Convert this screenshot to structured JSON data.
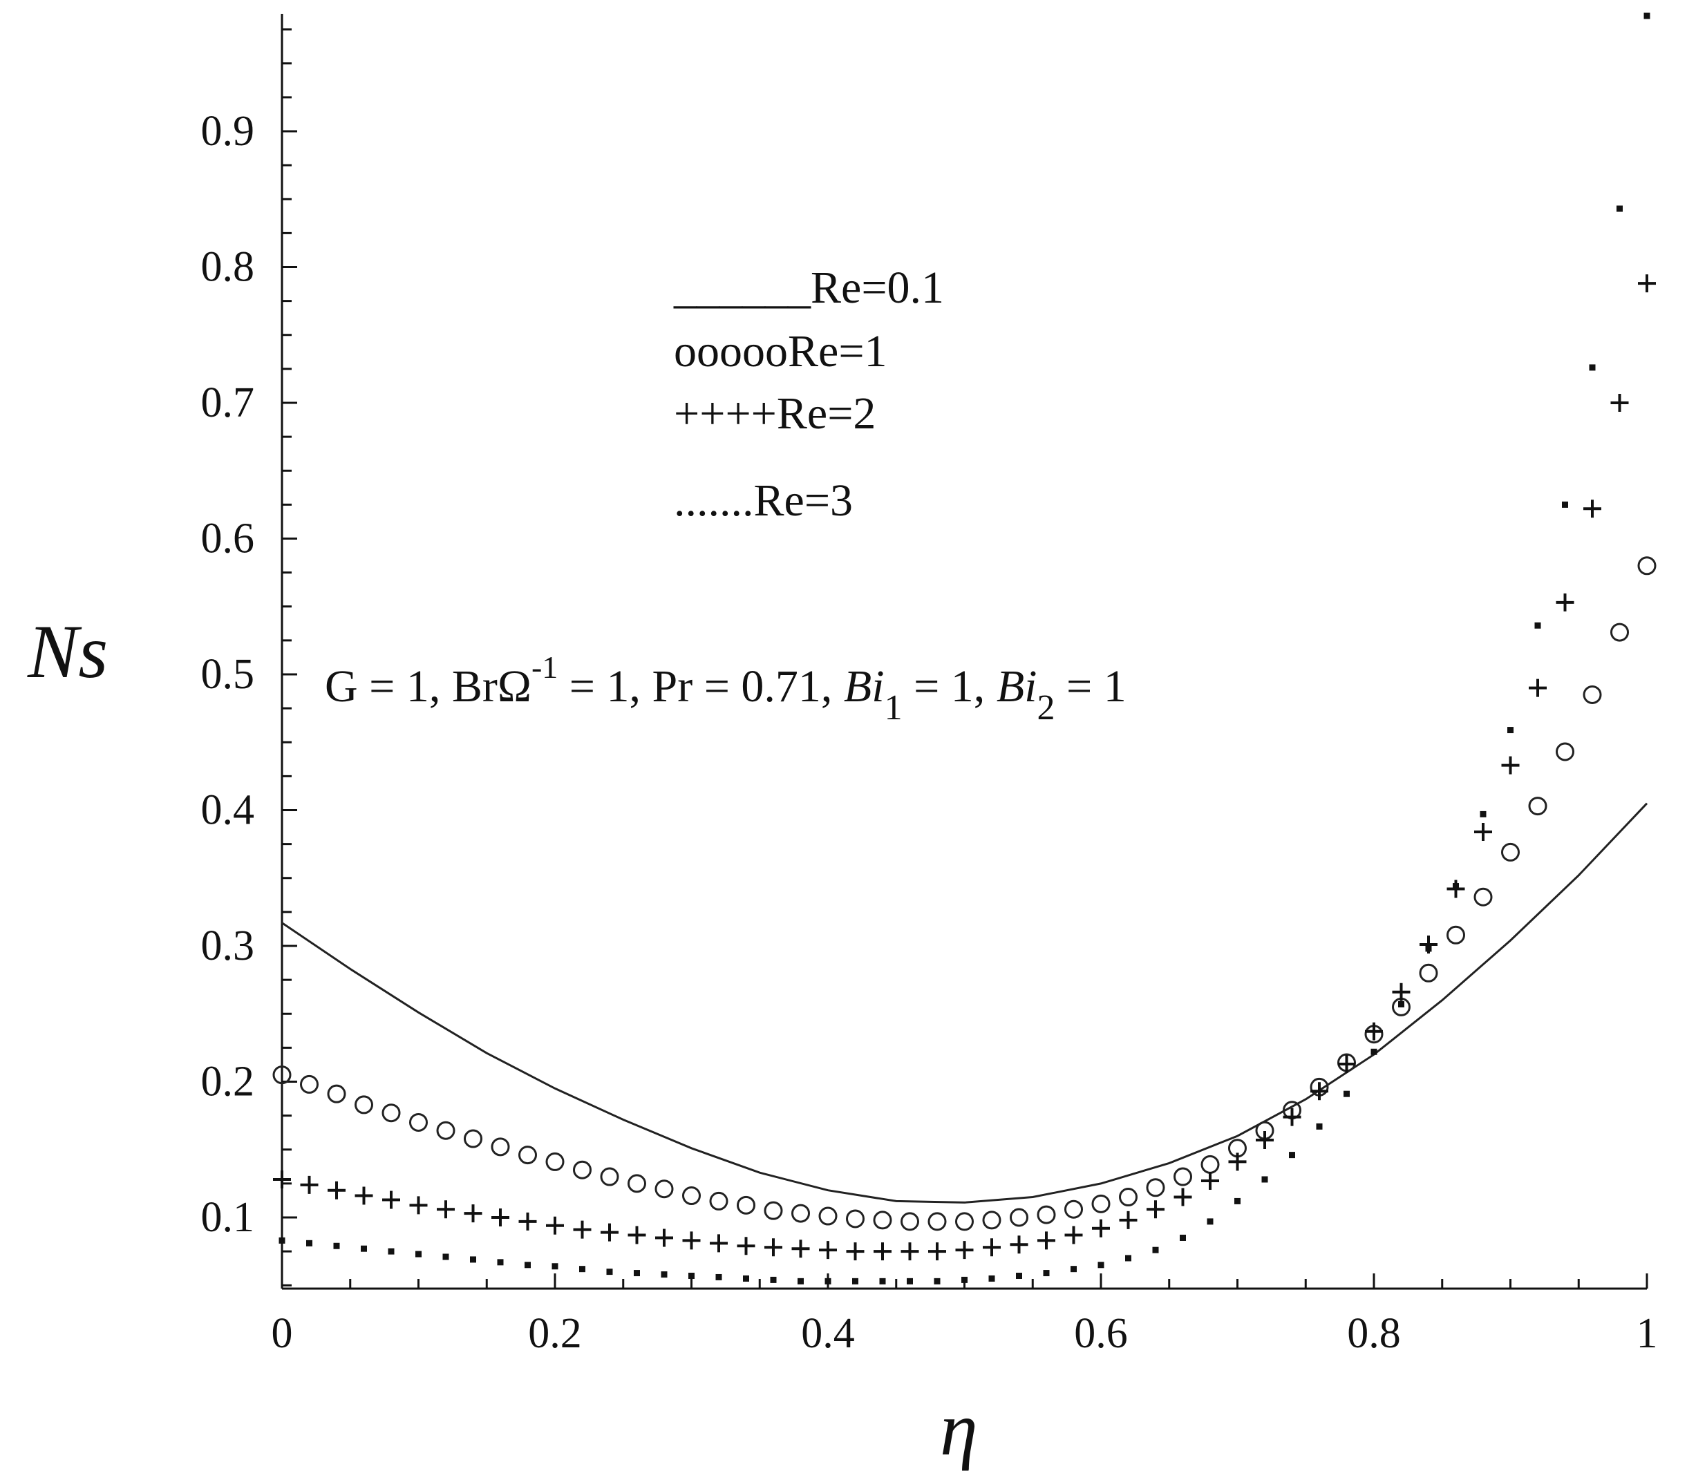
{
  "chart_data": {
    "type": "scatter",
    "xlabel": "η",
    "ylabel": "Ns",
    "xlim": [
      0,
      1
    ],
    "ylim": [
      0.05,
      0.98
    ],
    "xticks": [
      "0",
      "0.2",
      "0.4",
      "0.6",
      "0.8",
      "1"
    ],
    "yticks": [
      "0.1",
      "0.2",
      "0.3",
      "0.4",
      "0.5",
      "0.6",
      "0.7",
      "0.8",
      "0.9"
    ],
    "grid": false,
    "legend_placement": "upper-center",
    "annotation": {
      "g": "G = 1, ",
      "br_main": "BrΩ",
      "br_exp": "-1",
      "pr": " = 1, Pr = 0.71, ",
      "bi1_main": "Bi",
      "bi1_sub": "1",
      "bi1_val": " = 1, ",
      "bi2_main": "Bi",
      "bi2_sub": "2",
      "bi2_val": " = 1"
    },
    "series": [
      {
        "name": "Re=0.1",
        "legend_label": "______Re=0.1",
        "style": "solid-line",
        "x": [
          0.0,
          0.05,
          0.1,
          0.15,
          0.2,
          0.25,
          0.3,
          0.35,
          0.4,
          0.45,
          0.5,
          0.55,
          0.6,
          0.65,
          0.7,
          0.75,
          0.8,
          0.85,
          0.9,
          0.95,
          1.0
        ],
        "y": [
          0.317,
          0.283,
          0.251,
          0.221,
          0.195,
          0.172,
          0.151,
          0.133,
          0.12,
          0.112,
          0.111,
          0.115,
          0.125,
          0.14,
          0.16,
          0.187,
          0.22,
          0.26,
          0.304,
          0.352,
          0.405
        ]
      },
      {
        "name": "Re=1",
        "legend_label": "oooooRe=1",
        "style": "circle",
        "x": [
          0.0,
          0.02,
          0.04,
          0.06,
          0.08,
          0.1,
          0.12,
          0.14,
          0.16,
          0.18,
          0.2,
          0.22,
          0.24,
          0.26,
          0.28,
          0.3,
          0.32,
          0.34,
          0.36,
          0.38,
          0.4,
          0.42,
          0.44,
          0.46,
          0.48,
          0.5,
          0.52,
          0.54,
          0.56,
          0.58,
          0.6,
          0.62,
          0.64,
          0.66,
          0.68,
          0.7,
          0.72,
          0.74,
          0.76,
          0.78,
          0.8,
          0.82,
          0.84,
          0.86,
          0.88,
          0.9,
          0.92,
          0.94,
          0.96,
          0.98,
          1.0
        ],
        "y": [
          0.205,
          0.198,
          0.191,
          0.183,
          0.177,
          0.17,
          0.164,
          0.158,
          0.152,
          0.146,
          0.141,
          0.135,
          0.13,
          0.125,
          0.121,
          0.116,
          0.112,
          0.109,
          0.105,
          0.103,
          0.101,
          0.099,
          0.098,
          0.097,
          0.097,
          0.097,
          0.098,
          0.1,
          0.102,
          0.106,
          0.11,
          0.115,
          0.122,
          0.13,
          0.139,
          0.151,
          0.164,
          0.179,
          0.196,
          0.214,
          0.235,
          0.255,
          0.28,
          0.308,
          0.336,
          0.369,
          0.403,
          0.443,
          0.485,
          0.531,
          0.58
        ]
      },
      {
        "name": "Re=2",
        "legend_label": "++++Re=2",
        "style": "plus",
        "x": [
          0.0,
          0.02,
          0.04,
          0.06,
          0.08,
          0.1,
          0.12,
          0.14,
          0.16,
          0.18,
          0.2,
          0.22,
          0.24,
          0.26,
          0.28,
          0.3,
          0.32,
          0.34,
          0.36,
          0.38,
          0.4,
          0.42,
          0.44,
          0.46,
          0.48,
          0.5,
          0.52,
          0.54,
          0.56,
          0.58,
          0.6,
          0.62,
          0.64,
          0.66,
          0.68,
          0.7,
          0.72,
          0.74,
          0.76,
          0.78,
          0.8,
          0.82,
          0.84,
          0.86,
          0.88,
          0.9,
          0.92,
          0.94,
          0.96,
          0.98,
          1.0
        ],
        "y": [
          0.128,
          0.124,
          0.12,
          0.116,
          0.113,
          0.109,
          0.106,
          0.103,
          0.1,
          0.097,
          0.094,
          0.091,
          0.089,
          0.087,
          0.085,
          0.083,
          0.081,
          0.079,
          0.078,
          0.077,
          0.076,
          0.075,
          0.075,
          0.075,
          0.075,
          0.076,
          0.078,
          0.08,
          0.083,
          0.087,
          0.092,
          0.098,
          0.106,
          0.115,
          0.127,
          0.141,
          0.157,
          0.174,
          0.193,
          0.213,
          0.237,
          0.266,
          0.301,
          0.342,
          0.384,
          0.433,
          0.49,
          0.553,
          0.622,
          0.7,
          0.788
        ]
      },
      {
        "name": "Re=3",
        "legend_label": ".......Re=3",
        "style": "dot",
        "x": [
          0.0,
          0.02,
          0.04,
          0.06,
          0.08,
          0.1,
          0.12,
          0.14,
          0.16,
          0.18,
          0.2,
          0.22,
          0.24,
          0.26,
          0.28,
          0.3,
          0.32,
          0.34,
          0.36,
          0.38,
          0.4,
          0.42,
          0.44,
          0.46,
          0.48,
          0.5,
          0.52,
          0.54,
          0.56,
          0.58,
          0.6,
          0.62,
          0.64,
          0.66,
          0.68,
          0.7,
          0.72,
          0.74,
          0.76,
          0.78,
          0.8,
          0.82,
          0.84,
          0.86,
          0.88,
          0.9,
          0.92,
          0.94,
          0.96,
          0.98,
          1.0
        ],
        "y": [
          0.083,
          0.081,
          0.079,
          0.077,
          0.075,
          0.073,
          0.071,
          0.069,
          0.067,
          0.065,
          0.064,
          0.062,
          0.06,
          0.059,
          0.058,
          0.057,
          0.056,
          0.055,
          0.054,
          0.053,
          0.053,
          0.053,
          0.053,
          0.053,
          0.053,
          0.054,
          0.055,
          0.057,
          0.059,
          0.062,
          0.065,
          0.07,
          0.076,
          0.085,
          0.097,
          0.112,
          0.128,
          0.146,
          0.167,
          0.191,
          0.222,
          0.257,
          0.298,
          0.344,
          0.397,
          0.459,
          0.536,
          0.625,
          0.726,
          0.843,
          0.985
        ]
      }
    ]
  }
}
